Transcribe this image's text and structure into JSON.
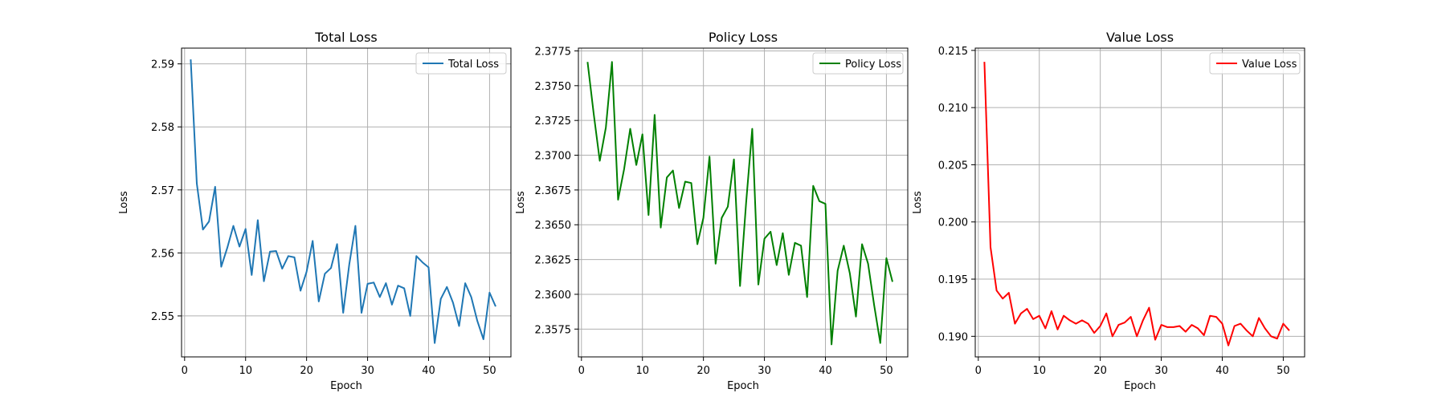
{
  "chart_data": [
    {
      "type": "line",
      "title": "Total Loss",
      "xlabel": "Epoch",
      "ylabel": "Loss",
      "xlim": [
        -0.5,
        53.5
      ],
      "ylim": [
        2.5435,
        2.5925
      ],
      "xticks": [
        0,
        10,
        20,
        30,
        40,
        50
      ],
      "yticks": [
        2.55,
        2.56,
        2.57,
        2.58,
        2.59
      ],
      "ytick_labels": [
        "2.55",
        "2.56",
        "2.57",
        "2.58",
        "2.59"
      ],
      "grid": true,
      "legend_position": "top-right",
      "series": [
        {
          "name": "Total Loss",
          "color": "#1f77b4",
          "x": [
            1,
            2,
            3,
            4,
            5,
            6,
            7,
            8,
            9,
            10,
            11,
            12,
            13,
            14,
            15,
            16,
            17,
            18,
            19,
            20,
            21,
            22,
            23,
            24,
            25,
            26,
            27,
            28,
            29,
            30,
            31,
            32,
            33,
            34,
            35,
            36,
            37,
            38,
            39,
            40,
            41,
            42,
            43,
            44,
            45,
            46,
            47,
            48,
            49,
            50,
            51
          ],
          "y": [
            2.5907,
            2.571,
            2.5637,
            2.565,
            2.5705,
            2.5578,
            2.5608,
            2.5643,
            2.561,
            2.5638,
            2.5565,
            2.5652,
            2.5555,
            2.5602,
            2.5603,
            2.5575,
            2.5595,
            2.5593,
            2.554,
            2.557,
            2.5619,
            2.5523,
            2.5567,
            2.5576,
            2.5614,
            2.5505,
            2.5582,
            2.5643,
            2.5505,
            2.5551,
            2.5553,
            2.553,
            2.5552,
            2.5518,
            2.5548,
            2.5544,
            2.55,
            2.5595,
            2.5585,
            2.5577,
            2.5457,
            2.5527,
            2.5546,
            2.5521,
            2.5484,
            2.5552,
            2.553,
            2.5492,
            2.5463,
            2.5537,
            2.5515
          ]
        }
      ]
    },
    {
      "type": "line",
      "title": "Policy Loss",
      "xlabel": "Epoch",
      "ylabel": "Loss",
      "xlim": [
        -0.5,
        53.5
      ],
      "ylim": [
        2.3555,
        2.3777
      ],
      "xticks": [
        0,
        10,
        20,
        30,
        40,
        50
      ],
      "yticks": [
        2.3575,
        2.36,
        2.3625,
        2.365,
        2.3675,
        2.37,
        2.3725,
        2.375,
        2.3775
      ],
      "ytick_labels": [
        "2.3575",
        "2.3600",
        "2.3625",
        "2.3650",
        "2.3675",
        "2.3700",
        "2.3725",
        "2.3750",
        "2.3775"
      ],
      "grid": true,
      "legend_position": "top-right",
      "series": [
        {
          "name": "Policy Loss",
          "color": "#008000",
          "x": [
            1,
            2,
            3,
            4,
            5,
            6,
            7,
            8,
            9,
            10,
            11,
            12,
            13,
            14,
            15,
            16,
            17,
            18,
            19,
            20,
            21,
            22,
            23,
            24,
            25,
            26,
            27,
            28,
            29,
            30,
            31,
            32,
            33,
            34,
            35,
            36,
            37,
            38,
            39,
            40,
            41,
            42,
            43,
            44,
            45,
            46,
            47,
            48,
            49,
            50,
            51
          ],
          "y": [
            2.3767,
            2.373,
            2.3696,
            2.372,
            2.3767,
            2.3668,
            2.369,
            2.3719,
            2.3693,
            2.3715,
            2.3657,
            2.3729,
            2.3648,
            2.3684,
            2.3689,
            2.3662,
            2.3681,
            2.368,
            2.3636,
            2.3655,
            2.3699,
            2.3622,
            2.3655,
            2.3663,
            2.3697,
            2.3606,
            2.3666,
            2.3719,
            2.3607,
            2.364,
            2.3645,
            2.3621,
            2.3644,
            2.3614,
            2.3637,
            2.3635,
            2.3598,
            2.3678,
            2.3667,
            2.3665,
            2.3564,
            2.3617,
            2.3635,
            2.3615,
            2.3584,
            2.3636,
            2.3622,
            2.3592,
            2.3565,
            2.3626,
            2.3609
          ]
        }
      ]
    },
    {
      "type": "line",
      "title": "Value Loss",
      "xlabel": "Epoch",
      "ylabel": "Loss",
      "xlim": [
        -0.5,
        53.5
      ],
      "ylim": [
        0.1882,
        0.2152
      ],
      "xticks": [
        0,
        10,
        20,
        30,
        40,
        50
      ],
      "yticks": [
        0.19,
        0.195,
        0.2,
        0.205,
        0.21,
        0.215
      ],
      "ytick_labels": [
        "0.190",
        "0.195",
        "0.200",
        "0.205",
        "0.210",
        "0.215"
      ],
      "grid": true,
      "legend_position": "top-right",
      "series": [
        {
          "name": "Value Loss",
          "color": "#ff0000",
          "x": [
            1,
            2,
            3,
            4,
            5,
            6,
            7,
            8,
            9,
            10,
            11,
            12,
            13,
            14,
            15,
            16,
            17,
            18,
            19,
            20,
            21,
            22,
            23,
            24,
            25,
            26,
            27,
            28,
            29,
            30,
            31,
            32,
            33,
            34,
            35,
            36,
            37,
            38,
            39,
            40,
            41,
            42,
            43,
            44,
            45,
            46,
            47,
            48,
            49,
            50,
            51
          ],
          "y": [
            0.214,
            0.1978,
            0.194,
            0.1933,
            0.1938,
            0.1911,
            0.192,
            0.1924,
            0.1915,
            0.1918,
            0.1907,
            0.1922,
            0.1906,
            0.1918,
            0.1914,
            0.1911,
            0.1914,
            0.1911,
            0.1903,
            0.1909,
            0.192,
            0.19,
            0.191,
            0.1912,
            0.1917,
            0.19,
            0.1914,
            0.1925,
            0.1897,
            0.191,
            0.1908,
            0.1908,
            0.1909,
            0.1904,
            0.191,
            0.1907,
            0.1901,
            0.1918,
            0.1917,
            0.1911,
            0.1892,
            0.1909,
            0.1911,
            0.1905,
            0.19,
            0.1916,
            0.1907,
            0.19,
            0.1898,
            0.1911,
            0.1905
          ]
        }
      ]
    }
  ]
}
